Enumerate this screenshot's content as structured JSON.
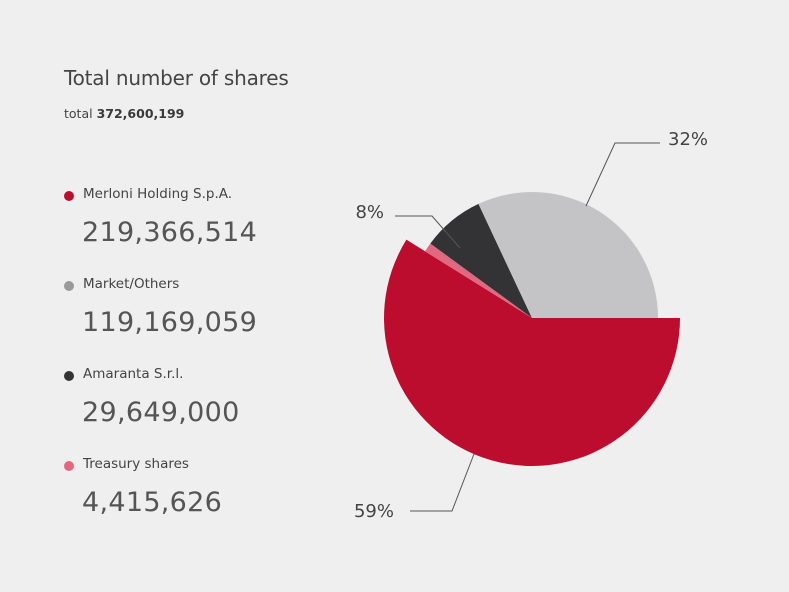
{
  "title": "Total number of shares",
  "total": {
    "prefix": "total",
    "value": "372,600,199"
  },
  "legend": [
    {
      "label": "Merloni Holding S.p.A.",
      "value": "219,366,514",
      "color": "#bd0d2e"
    },
    {
      "label": "Market/Others",
      "value": "119,169,059",
      "color": "#9a9a9a"
    },
    {
      "label": "Amaranta S.r.l.",
      "value": "29,649,000",
      "color": "#333333"
    },
    {
      "label": "Treasury shares",
      "value": "4,415,626",
      "color": "#e0697f"
    }
  ],
  "chart_data": {
    "type": "pie",
    "slices": [
      {
        "label": "Merloni Holding S.p.A.",
        "value": 219366514,
        "percent_label": "59%",
        "color": "#bd0d2e",
        "exploded": true
      },
      {
        "label": "Market/Others",
        "value": 119169059,
        "percent_label": "32%",
        "color": "#c4c4c6",
        "exploded": false
      },
      {
        "label": "Amaranta S.r.l.",
        "value": 29649000,
        "percent_label": "8%",
        "color": "#333335",
        "exploded": false
      },
      {
        "label": "Treasury shares",
        "value": 4415626,
        "percent_label": "",
        "color": "#e0697f",
        "exploded": false
      }
    ]
  }
}
